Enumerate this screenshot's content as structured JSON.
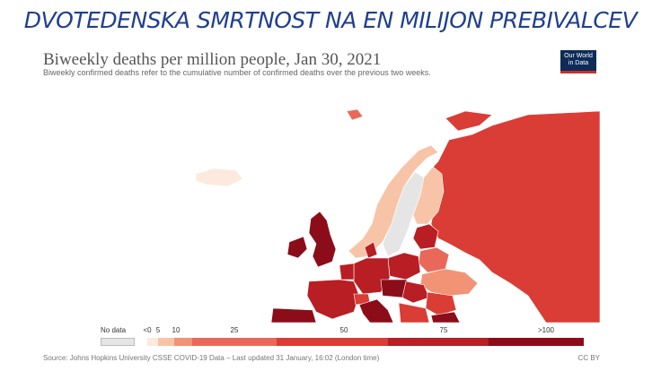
{
  "slide": {
    "title": "DVOTEDENSKA SMRTNOST NA EN MILIJON PREBIVALCEV"
  },
  "chart": {
    "title": "Biweekly deaths per million people, Jan 30, 2021",
    "subtitle": "Biweekly confirmed deaths refer to the cumulative number of confirmed deaths over the previous two weeks.",
    "logo_line1": "Our World",
    "logo_line2": "in Data",
    "source": "Source: Johns Hopkins University CSSE COVID-19 Data – Last updated 31 January, 16:02 (London time)",
    "license": "CC BY"
  },
  "legend": {
    "nodata_label": "No data",
    "ticks": [
      "<0",
      "5",
      "10",
      "25",
      "50",
      "75",
      ">100"
    ],
    "colors": [
      "#fde9dd",
      "#f7c4a8",
      "#f29375",
      "#e8695a",
      "#d93d35",
      "#b81e23",
      "#8c0d1a"
    ]
  },
  "colors": {
    "title": "#1f3f8f",
    "no_data": "#e5e5e5",
    "sea": "#ffffff"
  }
}
